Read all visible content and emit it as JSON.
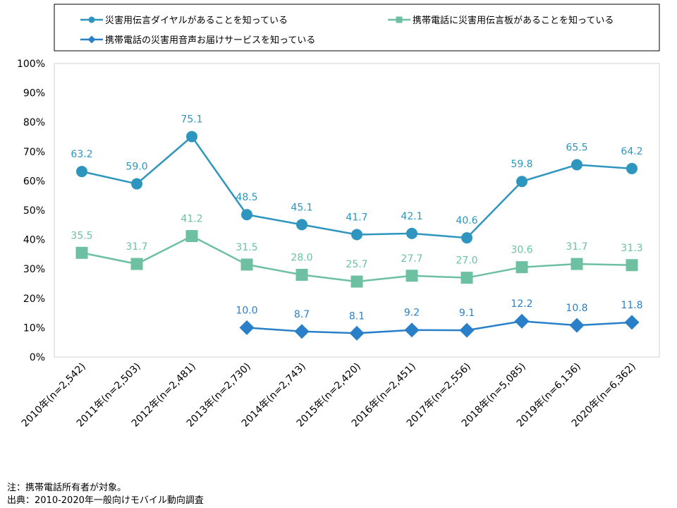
{
  "chart_data": {
    "type": "line",
    "categories": [
      "2010年(n=2,542)",
      "2011年(n=2,503)",
      "2012年(n=2,481)",
      "2013年(n=2,730)",
      "2014年(n=2,743)",
      "2015年(n=2,420)",
      "2016年(n=2,451)",
      "2017年(n=2,556)",
      "2018年(n=5,085)",
      "2019年(n=6,136)",
      "2020年(n=6,362)"
    ],
    "series": [
      {
        "name": "災害用伝言ダイヤルがあることを知っている",
        "marker": "circle",
        "color": "#2E96BE",
        "values": [
          63.2,
          59.0,
          75.1,
          48.5,
          45.1,
          41.7,
          42.1,
          40.6,
          59.8,
          65.5,
          64.2
        ]
      },
      {
        "name": "携帯電話に災害用伝言板があることを知っている",
        "marker": "square",
        "color": "#6DC0A2",
        "values": [
          35.5,
          31.7,
          41.2,
          31.5,
          28.0,
          25.7,
          27.7,
          27.0,
          30.6,
          31.7,
          31.3
        ]
      },
      {
        "name": "携帯電話の災害用音声お届けサービスを知っている",
        "marker": "diamond",
        "color": "#2A80C8",
        "values": [
          null,
          null,
          null,
          10.0,
          8.7,
          8.1,
          9.2,
          9.1,
          12.2,
          10.8,
          11.8
        ]
      }
    ],
    "yticks": [
      "0%",
      "10%",
      "20%",
      "30%",
      "40%",
      "50%",
      "60%",
      "70%",
      "80%",
      "90%",
      "100%"
    ],
    "ylim": [
      0,
      100
    ],
    "grid": false,
    "legend_position": "top"
  },
  "notes": {
    "note1": "注：携帯電話所有者が対象。",
    "note2": "出典：2010-2020年一般向けモバイル動向調査"
  }
}
